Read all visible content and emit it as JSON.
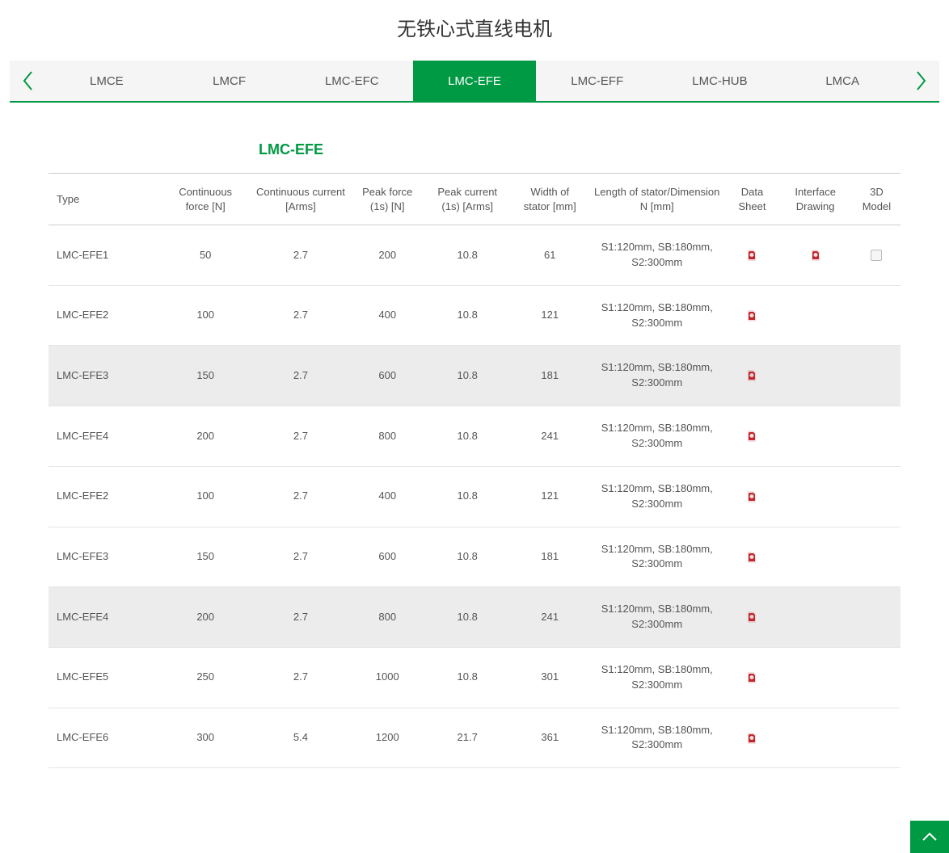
{
  "colors": {
    "accent": "#009944",
    "pdf_icon": "#c1272d",
    "text": "#555555",
    "border": "#cccccc",
    "row_border": "#e5e5e5",
    "hover_bg": "#ececec",
    "tabbar_bg": "#f5f5f5"
  },
  "page": {
    "title": "无铁心式直线电机"
  },
  "tabs": {
    "items": [
      {
        "label": "LMCE",
        "active": false
      },
      {
        "label": "LMCF",
        "active": false
      },
      {
        "label": "LMC-EFC",
        "active": false
      },
      {
        "label": "LMC-EFE",
        "active": true
      },
      {
        "label": "LMC-EFF",
        "active": false
      },
      {
        "label": "LMC-HUB",
        "active": false
      },
      {
        "label": "LMCA",
        "active": false
      }
    ]
  },
  "section": {
    "title": "LMC-EFE"
  },
  "table": {
    "columns": [
      "Type",
      "Continuous force [N]",
      "Continuous current [Arms]",
      "Peak force (1s) [N]",
      "Peak current (1s) [Arms]",
      "Width of stator [mm]",
      "Length of stator/Dimension N [mm]",
      "Data Sheet",
      "Interface Drawing",
      "3D Model"
    ],
    "rows": [
      {
        "type": "LMC-EFE1",
        "cf": "50",
        "cc": "2.7",
        "pf": "200",
        "pc": "10.8",
        "ws": "61",
        "ls": "S1:120mm, SB:180mm, S2:300mm",
        "ds": true,
        "id": true,
        "m3d": true,
        "highlight": false
      },
      {
        "type": "LMC-EFE2",
        "cf": "100",
        "cc": "2.7",
        "pf": "400",
        "pc": "10.8",
        "ws": "121",
        "ls": "S1:120mm, SB:180mm, S2:300mm",
        "ds": true,
        "id": false,
        "m3d": false,
        "highlight": false
      },
      {
        "type": "LMC-EFE3",
        "cf": "150",
        "cc": "2.7",
        "pf": "600",
        "pc": "10.8",
        "ws": "181",
        "ls": "S1:120mm, SB:180mm, S2:300mm",
        "ds": true,
        "id": false,
        "m3d": false,
        "highlight": true
      },
      {
        "type": "LMC-EFE4",
        "cf": "200",
        "cc": "2.7",
        "pf": "800",
        "pc": "10.8",
        "ws": "241",
        "ls": "S1:120mm, SB:180mm, S2:300mm",
        "ds": true,
        "id": false,
        "m3d": false,
        "highlight": false
      },
      {
        "type": "LMC-EFE2",
        "cf": "100",
        "cc": "2.7",
        "pf": "400",
        "pc": "10.8",
        "ws": "121",
        "ls": "S1:120mm, SB:180mm, S2:300mm",
        "ds": true,
        "id": false,
        "m3d": false,
        "highlight": false
      },
      {
        "type": "LMC-EFE3",
        "cf": "150",
        "cc": "2.7",
        "pf": "600",
        "pc": "10.8",
        "ws": "181",
        "ls": "S1:120mm, SB:180mm, S2:300mm",
        "ds": true,
        "id": false,
        "m3d": false,
        "highlight": false
      },
      {
        "type": "LMC-EFE4",
        "cf": "200",
        "cc": "2.7",
        "pf": "800",
        "pc": "10.8",
        "ws": "241",
        "ls": "S1:120mm, SB:180mm, S2:300mm",
        "ds": true,
        "id": false,
        "m3d": false,
        "highlight": true
      },
      {
        "type": "LMC-EFE5",
        "cf": "250",
        "cc": "2.7",
        "pf": "1000",
        "pc": "10.8",
        "ws": "301",
        "ls": "S1:120mm, SB:180mm, S2:300mm",
        "ds": true,
        "id": false,
        "m3d": false,
        "highlight": false
      },
      {
        "type": "LMC-EFE6",
        "cf": "300",
        "cc": "5.4",
        "pf": "1200",
        "pc": "21.7",
        "ws": "361",
        "ls": "S1:120mm, SB:180mm, S2:300mm",
        "ds": true,
        "id": false,
        "m3d": false,
        "highlight": false
      }
    ]
  }
}
